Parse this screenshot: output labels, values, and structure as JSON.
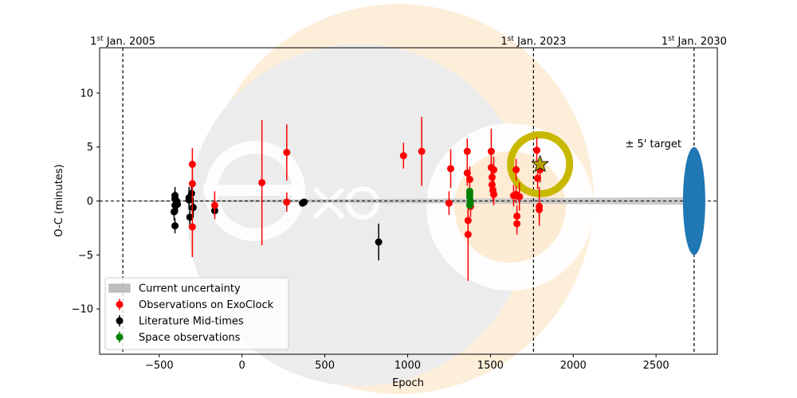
{
  "chart_data": {
    "type": "scatter",
    "xlabel": "Epoch",
    "ylabel": "O-C (minutes)",
    "xlim": [
      -860,
      2870
    ],
    "ylim": [
      -14.2,
      14.2
    ],
    "xticks": [
      -500,
      0,
      500,
      1000,
      1500,
      2000,
      2500
    ],
    "yticks": [
      -10,
      -5,
      0,
      5,
      10
    ],
    "grid": false,
    "legend_position": "bottom-left",
    "legend": [
      {
        "key": "uncertainty",
        "label": "Current uncertainty",
        "color": "#bfbfbf"
      },
      {
        "key": "exoclock",
        "label": "Observations on ExoClock",
        "color": "#ff0000"
      },
      {
        "key": "literature",
        "label": "Literature Mid-times",
        "color": "#000000"
      },
      {
        "key": "space",
        "label": "Space observations",
        "color": "#008000"
      }
    ],
    "date_markers": [
      {
        "epoch": -720,
        "sup": "st",
        "label_pre": "1",
        "label_post": " Jan. 2005"
      },
      {
        "epoch": 1760,
        "sup": "st",
        "label_pre": "1",
        "label_post": " Jan. 2023"
      },
      {
        "epoch": 2730,
        "sup": "st",
        "label_pre": "1",
        "label_post": " Jan. 2030"
      }
    ],
    "target": {
      "epoch": 2730,
      "half_width_minutes": 5,
      "label": "± 5' target",
      "color": "#1f77b4"
    },
    "next_event": {
      "epoch": 1800,
      "oc": 3.4,
      "ring_color": "#c8b800",
      "star_color": "#b8a000"
    },
    "uncertainty_band": {
      "x": [
        -720,
        2730
      ],
      "half_width_start": 0.05,
      "half_width_end": 0.35
    },
    "series": [
      {
        "key": "exoclock",
        "color": "#ff0000",
        "points": [
          {
            "x": -300,
            "y": 3.4,
            "err": 1.5
          },
          {
            "x": -300,
            "y": 1.6,
            "err": 1.5
          },
          {
            "x": -300,
            "y": -2.4,
            "err": 2.8
          },
          {
            "x": -165,
            "y": -0.4,
            "err": 1.3
          },
          {
            "x": 120,
            "y": 1.7,
            "err": 5.8
          },
          {
            "x": 270,
            "y": 4.5,
            "err": 2.6
          },
          {
            "x": 270,
            "y": -0.1,
            "err": 0.9
          },
          {
            "x": 975,
            "y": 4.2,
            "err": 1.2
          },
          {
            "x": 1085,
            "y": 4.6,
            "err": 3.2
          },
          {
            "x": 1250,
            "y": -0.2,
            "err": 1.1
          },
          {
            "x": 1260,
            "y": 3.0,
            "err": 1.8
          },
          {
            "x": 1360,
            "y": 4.6,
            "err": 1.2
          },
          {
            "x": 1360,
            "y": 2.6,
            "err": 1.2
          },
          {
            "x": 1365,
            "y": -3.1,
            "err": 4.3
          },
          {
            "x": 1365,
            "y": -1.8,
            "err": 1.2
          },
          {
            "x": 1375,
            "y": 2.0,
            "err": 1.2
          },
          {
            "x": 1380,
            "y": -0.5,
            "err": 1.0
          },
          {
            "x": 1505,
            "y": 4.6,
            "err": 2.1
          },
          {
            "x": 1505,
            "y": 3.1,
            "err": 1.0
          },
          {
            "x": 1510,
            "y": 2.2,
            "err": 1.0
          },
          {
            "x": 1510,
            "y": 1.5,
            "err": 1.0
          },
          {
            "x": 1515,
            "y": 1.0,
            "err": 1.0
          },
          {
            "x": 1520,
            "y": 2.9,
            "err": 1.2
          },
          {
            "x": 1520,
            "y": 0.6,
            "err": 1.0
          },
          {
            "x": 1640,
            "y": 0.5,
            "err": 1.0
          },
          {
            "x": 1655,
            "y": 2.9,
            "err": 1.0
          },
          {
            "x": 1655,
            "y": 0.6,
            "err": 0.8
          },
          {
            "x": 1660,
            "y": -1.4,
            "err": 1.0
          },
          {
            "x": 1660,
            "y": -2.1,
            "err": 1.0
          },
          {
            "x": 1675,
            "y": 0.4,
            "err": 1.3
          },
          {
            "x": 1780,
            "y": 4.7,
            "err": 1.2
          },
          {
            "x": 1785,
            "y": 2.1,
            "err": 1.0
          },
          {
            "x": 1795,
            "y": -0.5,
            "err": 1.8
          },
          {
            "x": 1795,
            "y": -0.8,
            "err": 1.0
          },
          {
            "x": 1800,
            "y": 2.9,
            "err": 1.2
          }
        ]
      },
      {
        "key": "literature",
        "color": "#000000",
        "points": [
          {
            "x": -405,
            "y": 0.5,
            "err": 0.8
          },
          {
            "x": -405,
            "y": 0.2,
            "err": 0.8
          },
          {
            "x": -405,
            "y": -0.4,
            "err": 0.8
          },
          {
            "x": -410,
            "y": -1.0,
            "err": 0.8
          },
          {
            "x": -405,
            "y": -2.3,
            "err": 0.7
          },
          {
            "x": -395,
            "y": 0.0,
            "err": 0.8
          },
          {
            "x": -390,
            "y": -0.3,
            "err": 0.8
          },
          {
            "x": -320,
            "y": 0.3,
            "err": 1.0
          },
          {
            "x": -320,
            "y": 0.1,
            "err": 0.9
          },
          {
            "x": -315,
            "y": -1.5,
            "err": 1.0
          },
          {
            "x": -305,
            "y": 0.7,
            "err": 0.9
          },
          {
            "x": -295,
            "y": -0.6,
            "err": 0.9
          },
          {
            "x": -165,
            "y": -0.9,
            "err": 0.5
          },
          {
            "x": 365,
            "y": -0.2,
            "err": 0.3
          },
          {
            "x": 375,
            "y": -0.1,
            "err": 0.3
          },
          {
            "x": 825,
            "y": -3.8,
            "err": 1.7
          }
        ]
      },
      {
        "key": "space",
        "color": "#008000",
        "points": [
          {
            "x": 1375,
            "y": 0.9,
            "err": 0.2
          },
          {
            "x": 1375,
            "y": 0.7,
            "err": 0.2
          },
          {
            "x": 1375,
            "y": 0.4,
            "err": 0.2
          },
          {
            "x": 1378,
            "y": 0.0,
            "err": 0.2
          },
          {
            "x": 1378,
            "y": -0.2,
            "err": 0.2
          },
          {
            "x": 1375,
            "y": -0.4,
            "err": 0.2
          }
        ]
      }
    ]
  }
}
